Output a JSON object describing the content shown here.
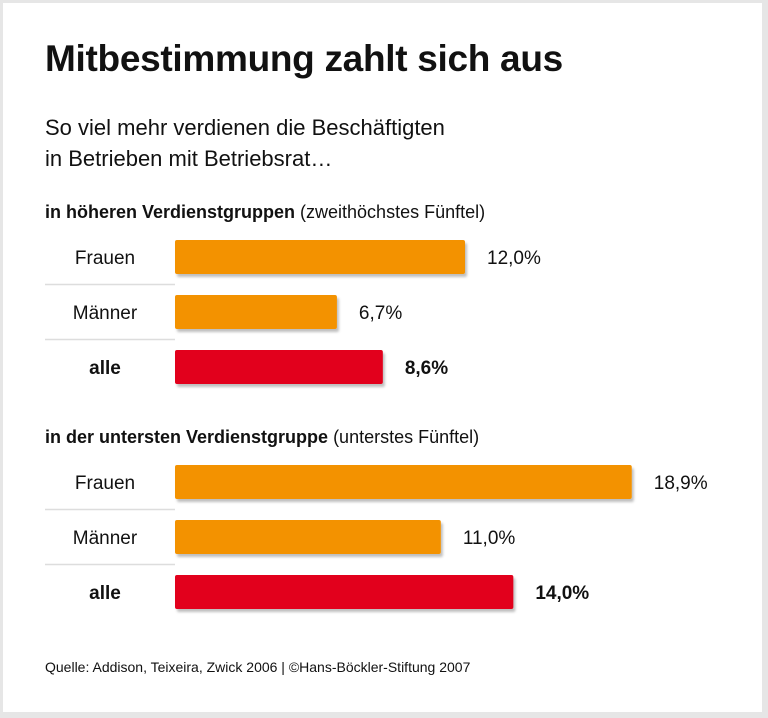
{
  "chart_data": {
    "type": "bar",
    "orientation": "horizontal",
    "title": "Mitbestimmung zahlt sich aus",
    "subtitle": [
      "So viel mehr verdienen die Beschäftigten",
      "in Betrieben mit Betriebsrat…"
    ],
    "unit": "%",
    "groups": [
      {
        "heading_bold": "in höheren Verdienstgruppen",
        "heading_normal": "(zweithöchstes Fünftel)",
        "categories": [
          "Frauen",
          "Männer",
          "alle"
        ],
        "values": [
          12.0,
          6.7,
          8.6
        ],
        "labels": [
          "12,0%",
          "6,7%",
          "8,6%"
        ]
      },
      {
        "heading_bold": "in der untersten Verdienstgruppe",
        "heading_normal": "(unterstes Fünftel)",
        "categories": [
          "Frauen",
          "Männer",
          "alle"
        ],
        "values": [
          18.9,
          11.0,
          14.0
        ],
        "labels": [
          "18,9%",
          "11,0%",
          "14,0%"
        ]
      }
    ],
    "colors": {
      "gender": "#f39200",
      "all": "#e2001a"
    },
    "grid": false
  },
  "source": "Quelle: Addison, Teixeira, Zwick 2006 | ©Hans-Böckler-Stiftung 2007"
}
